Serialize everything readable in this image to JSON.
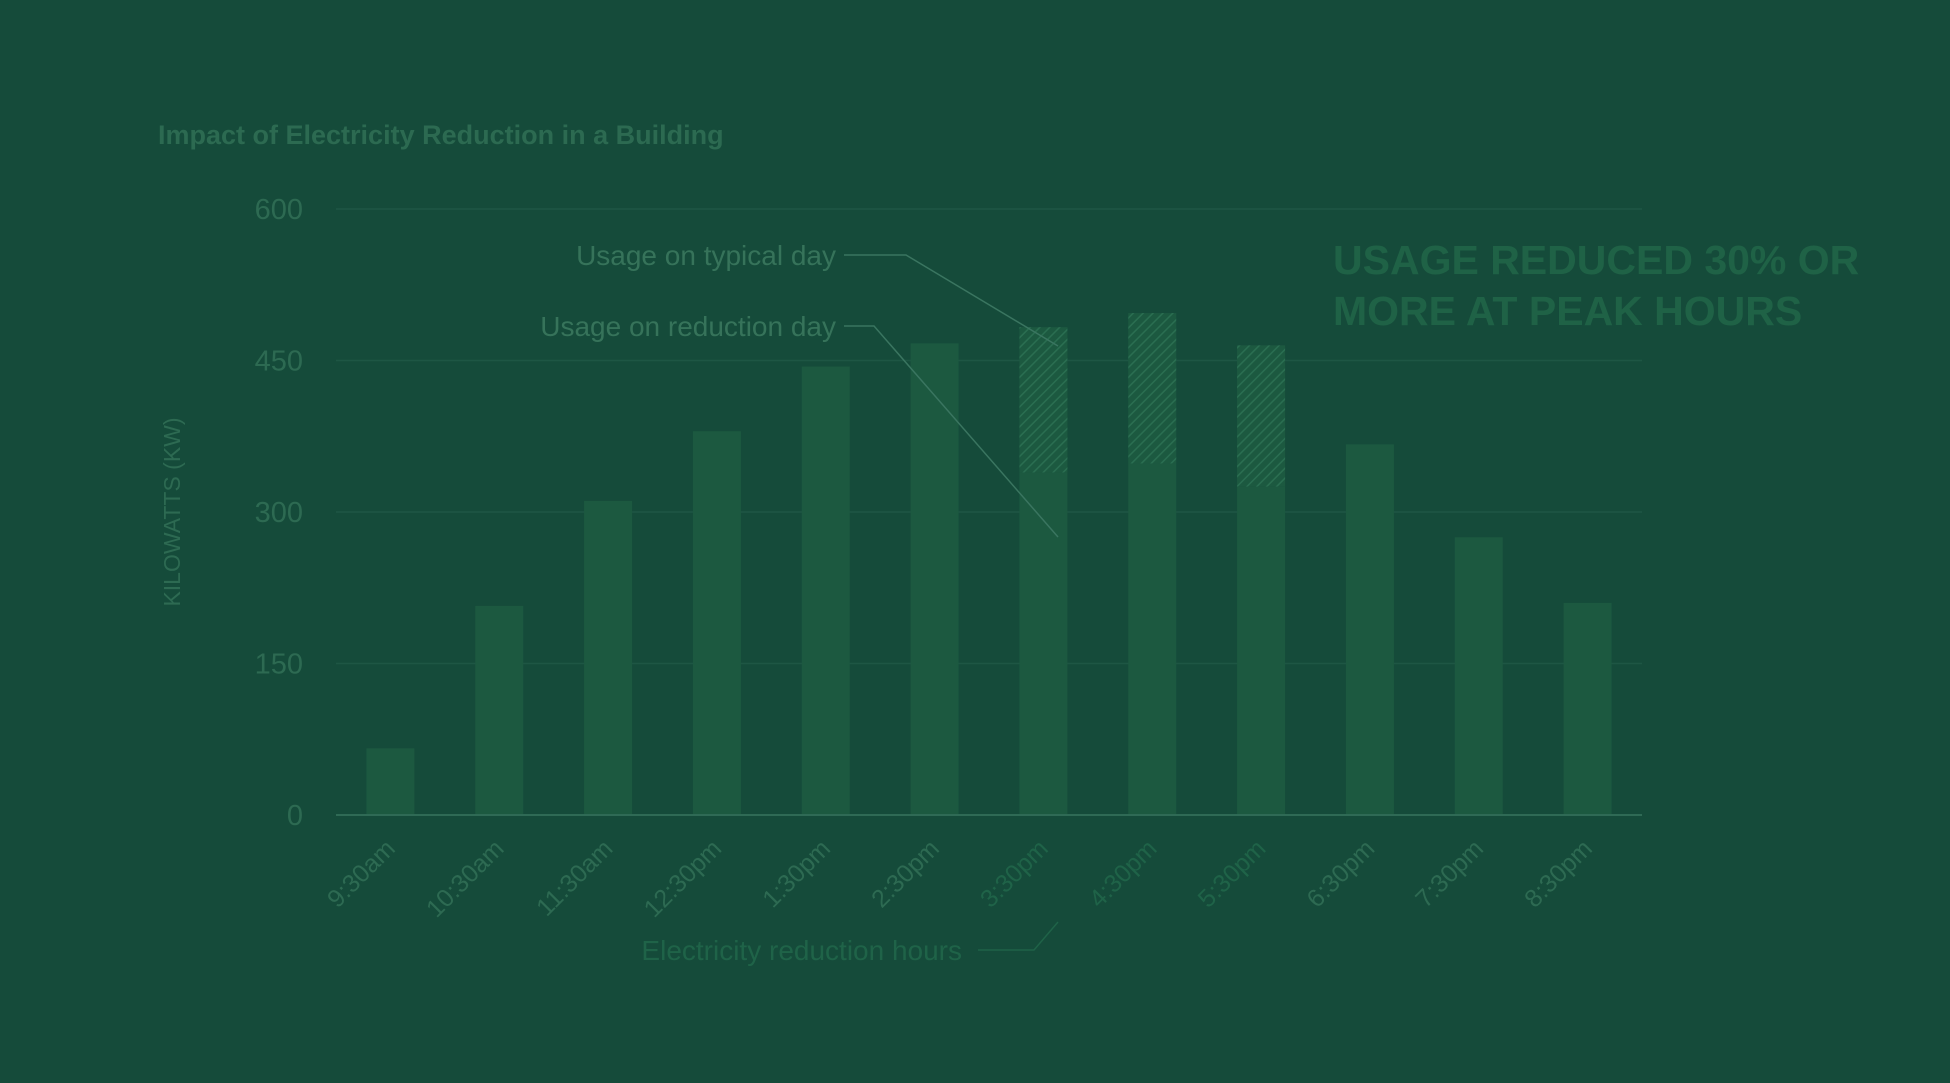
{
  "colors": {
    "background": "#154b3a",
    "bar": "#1c5940",
    "hatch": "#2a6e51",
    "grid": "#1e5644",
    "axis": "#2f6a55",
    "tick_text": "#2d6a52",
    "title": "#2c6a51",
    "headline": "#1f6246",
    "annotation_text": "#36735a",
    "reduction_text": "#1f6348",
    "leader": "#3a7560"
  },
  "chart_data": {
    "type": "bar",
    "title": "Impact of Electricity Reduction in a Building",
    "ylabel": "KILOWATTS (KW)",
    "xlabel": "",
    "ylim": [
      0,
      600
    ],
    "yticks": [
      0,
      150,
      300,
      450,
      600
    ],
    "grid": true,
    "categories": [
      "9:30am",
      "10:30am",
      "11:30am",
      "12:30pm",
      "1:30pm",
      "2:30pm",
      "3:30pm",
      "4:30pm",
      "5:30pm",
      "6:30pm",
      "7:30pm",
      "8:30pm"
    ],
    "series": [
      {
        "name": "Usage on reduction day",
        "values": [
          66,
          207,
          311,
          380,
          444,
          467,
          339,
          348,
          325,
          367,
          275,
          210
        ]
      },
      {
        "name": "Usage on typical day",
        "values": [
          66,
          207,
          311,
          380,
          444,
          467,
          483,
          497,
          465,
          367,
          275,
          210
        ]
      }
    ],
    "reduction_categories": [
      "3:30pm",
      "4:30pm",
      "5:30pm"
    ],
    "annotations": {
      "typical": "Usage on typical day",
      "reduction": "Usage on reduction day",
      "hours": "Electricity reduction hours",
      "headline": [
        "USAGE REDUCED 30% OR",
        "MORE AT PEAK HOURS"
      ]
    }
  }
}
